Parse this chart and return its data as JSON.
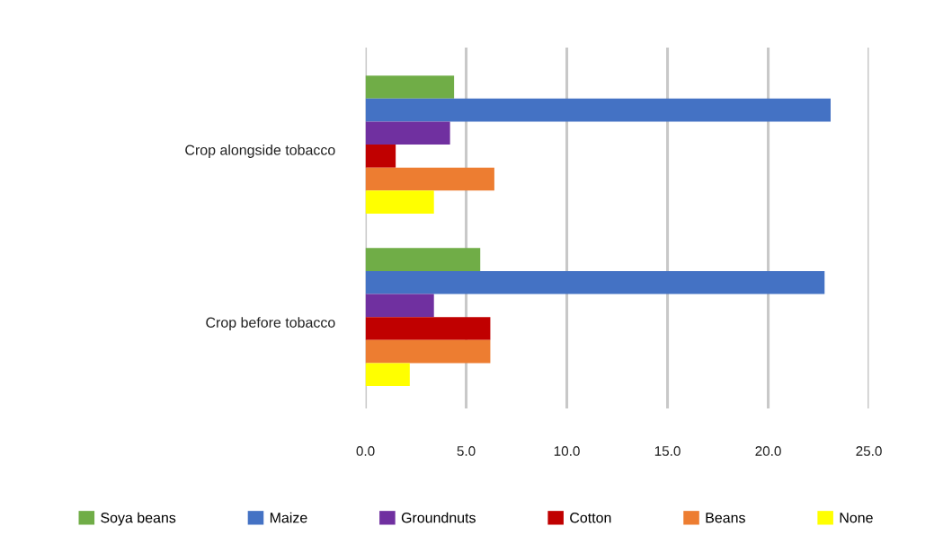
{
  "chart_data": {
    "type": "bar",
    "orientation": "horizontal",
    "categories": [
      "Crop alongside tobacco",
      "Crop before tobacco"
    ],
    "series": [
      {
        "name": "Soya beans",
        "color": "#70ad47",
        "values": [
          4.4,
          5.7
        ]
      },
      {
        "name": "Maize",
        "color": "#4472c4",
        "values": [
          23.1,
          22.8
        ]
      },
      {
        "name": "Groundnuts",
        "color": "#7030a0",
        "values": [
          4.2,
          3.4
        ]
      },
      {
        "name": "Cotton",
        "color": "#c00000",
        "values": [
          1.5,
          6.2
        ]
      },
      {
        "name": "Beans",
        "color": "#ed7d31",
        "values": [
          6.4,
          6.2
        ]
      },
      {
        "name": "None",
        "color": "#ffff00",
        "values": [
          3.4,
          2.2
        ]
      }
    ],
    "xlim": [
      0,
      25
    ],
    "xticks": [
      {
        "value": 0,
        "label": "0.0"
      },
      {
        "value": 5,
        "label": "5.0"
      },
      {
        "value": 10,
        "label": "10.0"
      },
      {
        "value": 15,
        "label": "15.0"
      },
      {
        "value": 20,
        "label": "20.0"
      },
      {
        "value": 25,
        "label": "25.0"
      }
    ],
    "grid": "x",
    "legend": "bottom"
  }
}
